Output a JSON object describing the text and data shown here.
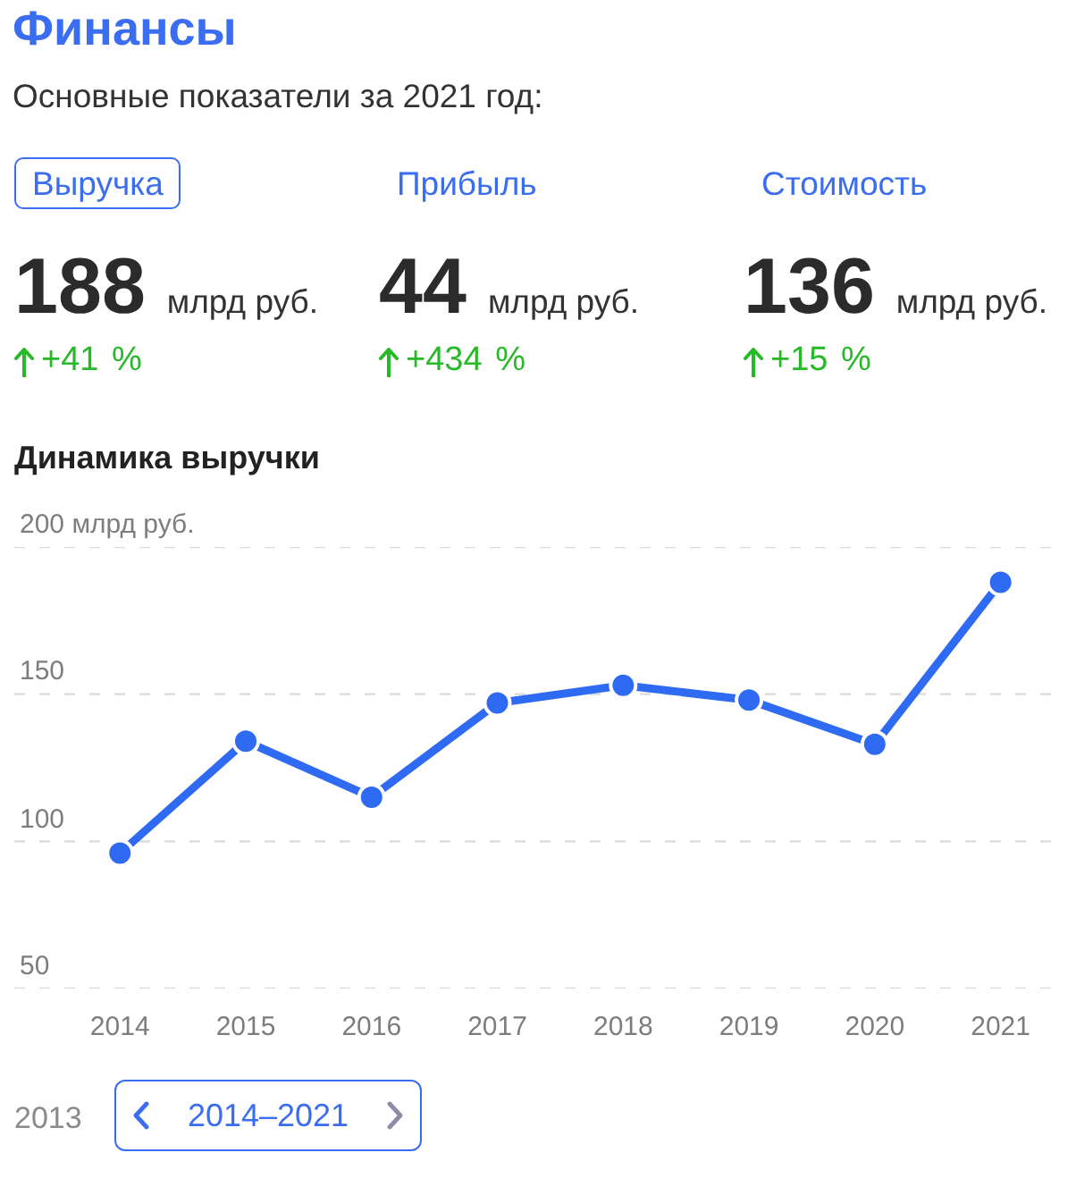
{
  "chart_data": [
    {
      "type": "other",
      "title": "Финансы",
      "subtitle": "Основные показатели за 2021 год:",
      "categories": [
        "Выручка",
        "Прибыль",
        "Стоимость"
      ],
      "values": [
        188,
        44,
        136
      ],
      "data_labels": true,
      "annotations": [
        "млрд руб.",
        "млрд руб.",
        "млрд руб.",
        "+41 %",
        "+434 %",
        "+15 %"
      ]
    },
    {
      "type": "line",
      "title": "Динамика выручки",
      "categories": [
        "2014",
        "2015",
        "2016",
        "2017",
        "2018",
        "2019",
        "2020",
        "2021"
      ],
      "values": [
        96,
        134,
        115,
        147,
        153,
        148,
        133,
        188
      ],
      "color": "#2f6af2",
      "ylim": [
        50,
        200
      ],
      "yticks": [
        50,
        100,
        150,
        {
          "value": 200,
          "label": "200 млрд руб."
        }
      ],
      "grid": "y",
      "marker": "circle",
      "line_style": "solid",
      "annotations": [
        "2013",
        "2014–2021"
      ]
    }
  ]
}
